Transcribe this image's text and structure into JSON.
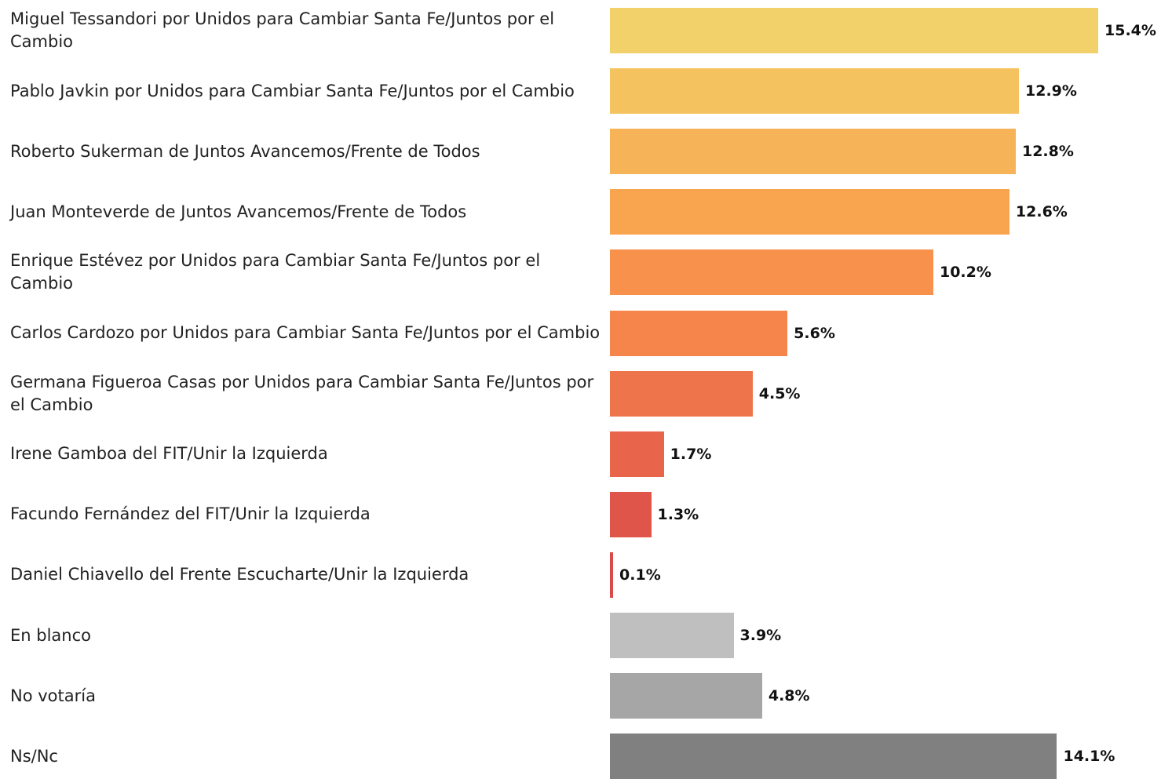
{
  "chart_data": {
    "type": "bar",
    "orientation": "horizontal",
    "categories": [
      "Miguel Tessandori por Unidos para Cambiar Santa Fe/Juntos por el Cambio",
      "Pablo Javkin por Unidos para Cambiar Santa Fe/Juntos por el Cambio",
      "Roberto Sukerman de Juntos Avancemos/Frente de Todos",
      "Juan Monteverde de Juntos Avancemos/Frente de Todos",
      "Enrique Estévez por Unidos para Cambiar Santa Fe/Juntos por el Cambio",
      "Carlos Cardozo por Unidos para Cambiar Santa Fe/Juntos por el Cambio",
      "Germana Figueroa Casas por Unidos para Cambiar Santa Fe/Juntos por el Cambio",
      "Irene Gamboa del FIT/Unir la Izquierda",
      "Facundo Fernández del FIT/Unir la Izquierda",
      "Daniel Chiavello del Frente Escucharte/Unir la Izquierda",
      "En blanco",
      "No votaría",
      "Ns/Nc"
    ],
    "values": [
      15.4,
      12.9,
      12.8,
      12.6,
      10.2,
      5.6,
      4.5,
      1.7,
      1.3,
      0.1,
      3.9,
      4.8,
      14.1
    ],
    "value_labels": [
      "15.4%",
      "12.9%",
      "12.8%",
      "12.6%",
      "10.2%",
      "5.6%",
      "4.5%",
      "1.7%",
      "1.3%",
      "0.1%",
      "3.9%",
      "4.8%",
      "14.1%"
    ],
    "colors": [
      "#f2d16b",
      "#f4c360",
      "#f7b357",
      "#f9a44f",
      "#f8914c",
      "#f5854b",
      "#ee744c",
      "#e8654b",
      "#e0554a",
      "#d94a48",
      "#bfbfbf",
      "#a6a6a6",
      "#808080"
    ]
  }
}
